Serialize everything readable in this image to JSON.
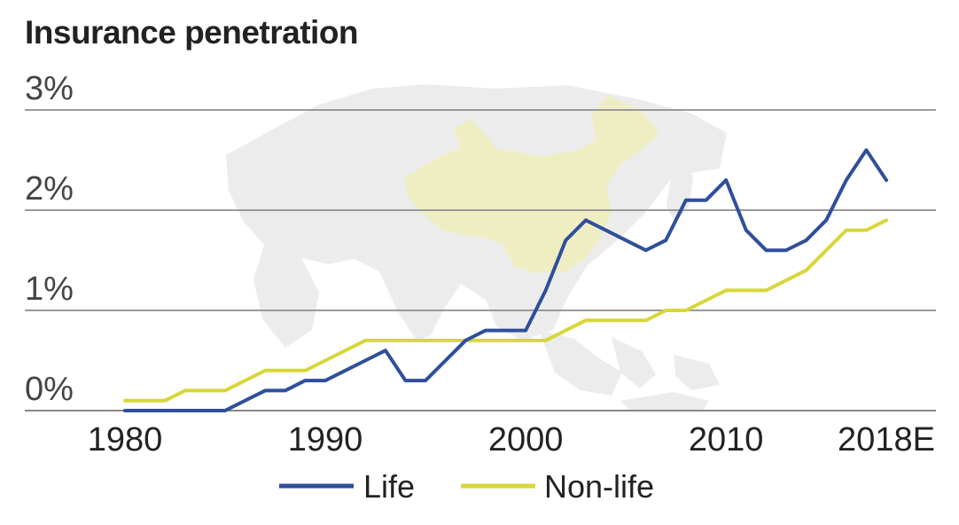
{
  "chart_data": {
    "type": "line",
    "title": "Insurance penetration",
    "xlabel": "",
    "ylabel": "",
    "xlim": [
      1980,
      2019
    ],
    "ylim": [
      0,
      3
    ],
    "yticks": [
      {
        "value": 0,
        "label": "0%"
      },
      {
        "value": 1,
        "label": "1%"
      },
      {
        "value": 2,
        "label": "2%"
      },
      {
        "value": 3,
        "label": "3%"
      }
    ],
    "xticks": [
      {
        "value": 1980,
        "label": "1980"
      },
      {
        "value": 1990,
        "label": "1990"
      },
      {
        "value": 2000,
        "label": "2000"
      },
      {
        "value": 2010,
        "label": "2010"
      },
      {
        "value": 2018,
        "label": "2018E"
      }
    ],
    "grid": "horizontal",
    "legend_position": "bottom-center",
    "series": [
      {
        "name": "Life",
        "color": "#2f4f9c",
        "x": [
          1980,
          1981,
          1982,
          1983,
          1984,
          1985,
          1986,
          1987,
          1988,
          1989,
          1990,
          1991,
          1992,
          1993,
          1994,
          1995,
          1996,
          1997,
          1998,
          1999,
          2000,
          2001,
          2002,
          2003,
          2004,
          2005,
          2006,
          2007,
          2008,
          2009,
          2010,
          2011,
          2012,
          2013,
          2014,
          2015,
          2016,
          2017,
          2018
        ],
        "values": [
          0.0,
          0.0,
          0.0,
          0.0,
          0.0,
          0.0,
          0.1,
          0.2,
          0.2,
          0.3,
          0.3,
          0.4,
          0.5,
          0.6,
          0.3,
          0.3,
          0.5,
          0.7,
          0.8,
          0.8,
          0.8,
          1.2,
          1.7,
          1.9,
          1.8,
          1.7,
          1.6,
          1.7,
          2.1,
          2.1,
          2.3,
          1.8,
          1.6,
          1.6,
          1.7,
          1.9,
          2.3,
          2.6,
          2.3
        ]
      },
      {
        "name": "Non-life",
        "color": "#d8d63a",
        "x": [
          1980,
          1981,
          1982,
          1983,
          1984,
          1985,
          1986,
          1987,
          1988,
          1989,
          1990,
          1991,
          1992,
          1993,
          1994,
          1995,
          1996,
          1997,
          1998,
          1999,
          2000,
          2001,
          2002,
          2003,
          2004,
          2005,
          2006,
          2007,
          2008,
          2009,
          2010,
          2011,
          2012,
          2013,
          2014,
          2015,
          2016,
          2017,
          2018
        ],
        "values": [
          0.1,
          0.1,
          0.1,
          0.2,
          0.2,
          0.2,
          0.3,
          0.4,
          0.4,
          0.4,
          0.5,
          0.6,
          0.7,
          0.7,
          0.7,
          0.7,
          0.7,
          0.7,
          0.7,
          0.7,
          0.7,
          0.7,
          0.8,
          0.9,
          0.9,
          0.9,
          0.9,
          1.0,
          1.0,
          1.1,
          1.2,
          1.2,
          1.2,
          1.3,
          1.4,
          1.6,
          1.8,
          1.8,
          1.9
        ]
      }
    ],
    "background_map": {
      "land_color": "#ececec",
      "highlight_color": "#efeec2"
    }
  }
}
